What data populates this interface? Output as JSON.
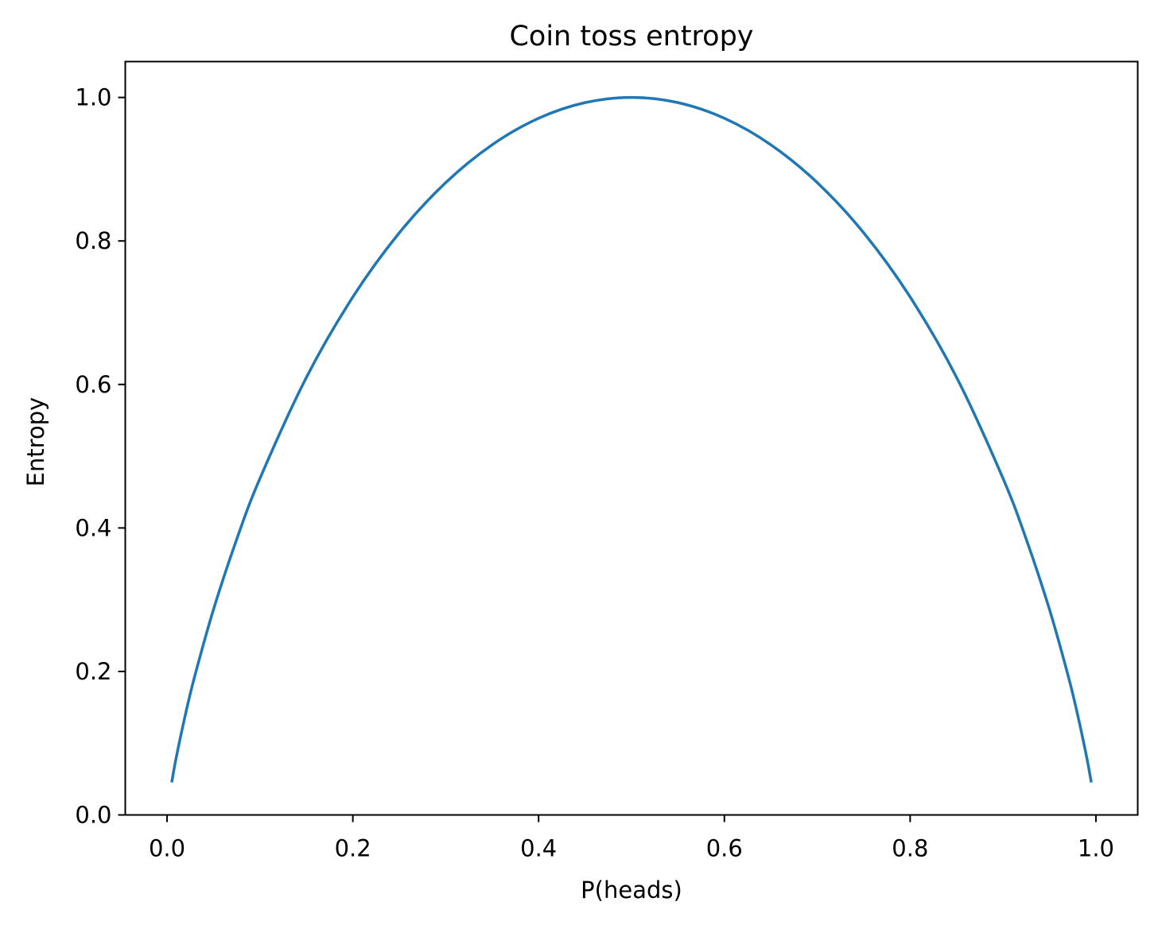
{
  "chart_data": {
    "type": "line",
    "title": "Coin toss entropy",
    "xlabel": "P(heads)",
    "ylabel": "Entropy",
    "xlim": [
      -0.045,
      1.045
    ],
    "ylim": [
      0.0,
      1.05
    ],
    "xticks": [
      {
        "value": 0.0,
        "label": "0.0"
      },
      {
        "value": 0.2,
        "label": "0.2"
      },
      {
        "value": 0.4,
        "label": "0.4"
      },
      {
        "value": 0.6,
        "label": "0.6"
      },
      {
        "value": 0.8,
        "label": "0.8"
      },
      {
        "value": 1.0,
        "label": "1.0"
      }
    ],
    "yticks": [
      {
        "value": 0.0,
        "label": "0.0"
      },
      {
        "value": 0.2,
        "label": "0.2"
      },
      {
        "value": 0.4,
        "label": "0.4"
      },
      {
        "value": 0.6,
        "label": "0.6"
      },
      {
        "value": 0.8,
        "label": "0.8"
      },
      {
        "value": 1.0,
        "label": "1.0"
      }
    ],
    "grid": false,
    "series": [
      {
        "color": "#1f77b4",
        "x": [
          0.005,
          0.01,
          0.02,
          0.03,
          0.05,
          0.075,
          0.1,
          0.15,
          0.2,
          0.25,
          0.3,
          0.35,
          0.4,
          0.45,
          0.5,
          0.55,
          0.6,
          0.65,
          0.7,
          0.75,
          0.8,
          0.85,
          0.9,
          0.925,
          0.95,
          0.97,
          0.98,
          0.99,
          0.995
        ],
        "y": [
          0.0454,
          0.0808,
          0.1414,
          0.1944,
          0.2864,
          0.3843,
          0.469,
          0.6098,
          0.7219,
          0.8113,
          0.8813,
          0.9341,
          0.971,
          0.9928,
          1.0,
          0.9928,
          0.971,
          0.9341,
          0.8813,
          0.8113,
          0.7219,
          0.6098,
          0.469,
          0.3843,
          0.2864,
          0.1944,
          0.1414,
          0.0808,
          0.0454
        ]
      }
    ]
  }
}
